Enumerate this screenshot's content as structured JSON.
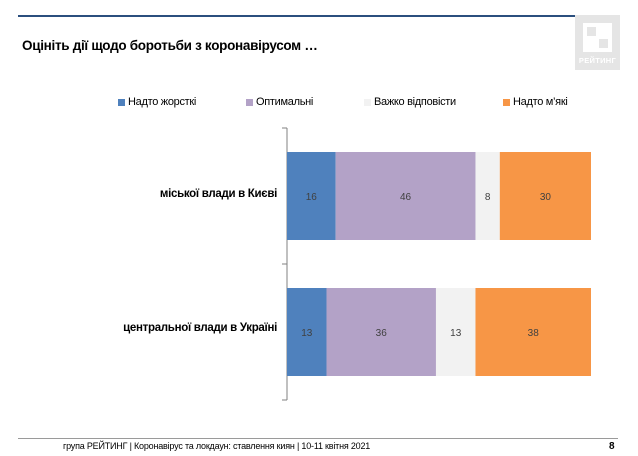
{
  "title": "Оцініть дії щодо боротьби з коронавірусом …",
  "logo": {
    "text": "РЕЙТИНГ",
    "icon": "rating-logo-mark"
  },
  "footer": {
    "text": "група РЕЙТИНГ  | Коронавірус та локдаун: ставлення киян  | 10-11 квітня 2021",
    "page": "8"
  },
  "colors": {
    "too_strict": "#4f81bd",
    "optimal": "#b3a2c7",
    "hard_to_say": "#f2f2f2",
    "too_soft": "#f79646",
    "header_line": "#2b4f7e"
  },
  "chart_data": {
    "type": "bar",
    "orientation": "horizontal",
    "stacked": true,
    "categories": [
      "міської влади в Києві",
      "центральної влади в Україні"
    ],
    "series": [
      {
        "name": "Надто жорсткі",
        "values": [
          16,
          13
        ]
      },
      {
        "name": "Оптимальні",
        "values": [
          46,
          36
        ]
      },
      {
        "name": "Важко відповісти",
        "values": [
          8,
          13
        ]
      },
      {
        "name": "Надто м’які",
        "values": [
          30,
          38
        ]
      }
    ],
    "legend_position": "top",
    "xlim": [
      0,
      100
    ],
    "grid": false,
    "data_labels": true
  }
}
